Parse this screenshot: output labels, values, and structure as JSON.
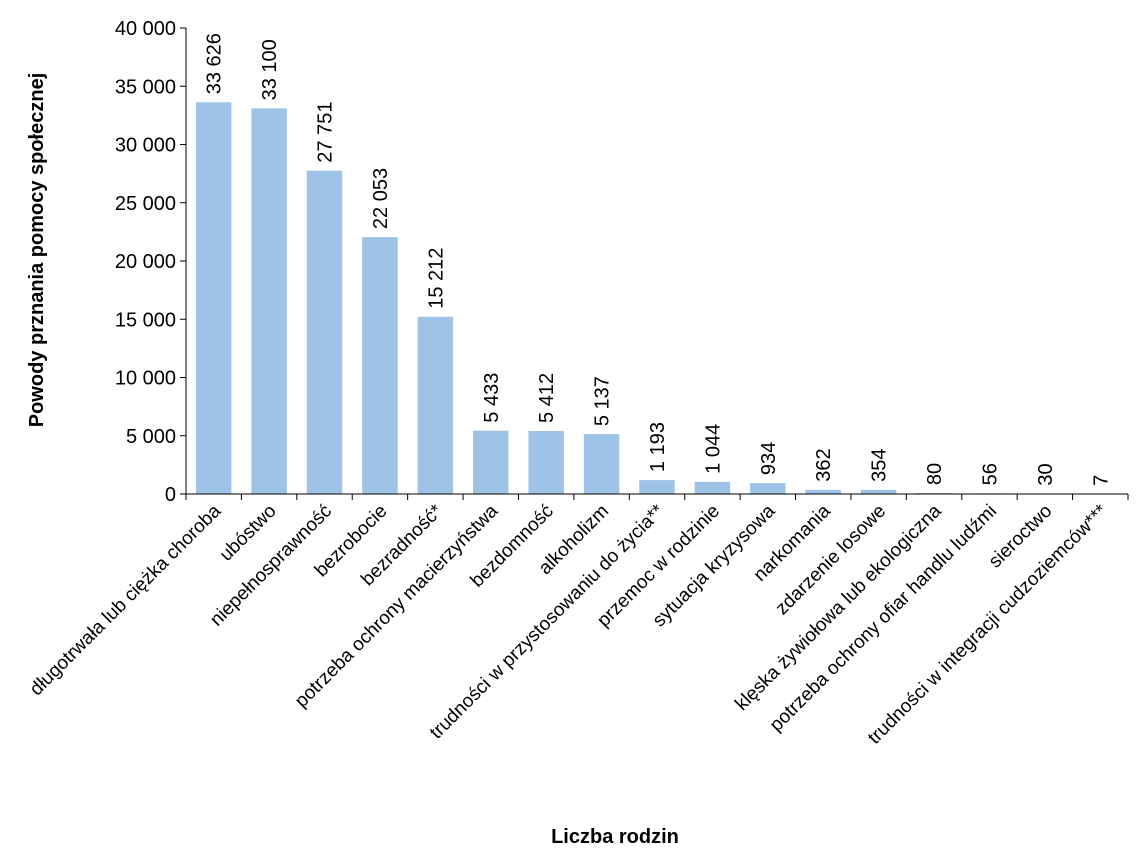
{
  "chart_data": {
    "type": "bar",
    "title": "",
    "xlabel": "Liczba rodzin",
    "ylabel": "Powody prznania pomocy społecznej",
    "ylim": [
      0,
      40000
    ],
    "yticks": [
      0,
      5000,
      10000,
      15000,
      20000,
      25000,
      30000,
      35000,
      40000
    ],
    "ytick_labels": [
      "0",
      "5 000",
      "10 000",
      "15 000",
      "20 000",
      "25 000",
      "30 000",
      "35 000",
      "40 000"
    ],
    "grid": false,
    "bar_color": "#9dc3e6",
    "categories": [
      "długotrwała lub ciężka choroba",
      "ubóstwo",
      "niepełnosprawność",
      "bezrobocie",
      "bezradność*",
      "potrzeba ochrony macierzyństwa",
      "bezdomność",
      "alkoholizm",
      "trudności w przystosowaniu do życia**",
      "przemoc w rodzinie",
      "sytuacja kryzysowa",
      "narkomania",
      "zdarzenie losowe",
      "klęska żywiołowa lub ekologiczna",
      "potrzeba ochrony ofiar handlu ludźmi",
      "sieroctwo",
      "trudności w integracji cudzoziemców***"
    ],
    "values": [
      33626,
      33100,
      27751,
      22053,
      15212,
      5433,
      5412,
      5137,
      1193,
      1044,
      934,
      362,
      354,
      80,
      56,
      30,
      7
    ],
    "value_labels": [
      "33 626",
      "33 100",
      "27 751",
      "22 053",
      "15 212",
      "5 433",
      "5 412",
      "5 137",
      "1 193",
      "1 044",
      "934",
      "362",
      "354",
      "80",
      "56",
      "30",
      "7"
    ]
  }
}
